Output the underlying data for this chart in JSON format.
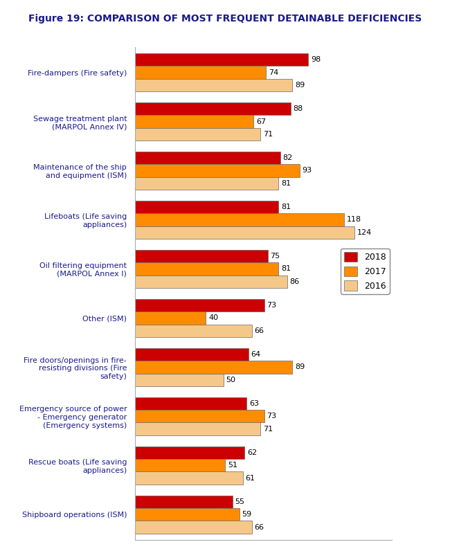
{
  "title": "Figure 19: COMPARISON OF MOST FREQUENT DETAINABLE DEFICIENCIES",
  "categories": [
    "Fire-dampers (Fire safety)",
    "Sewage treatment plant\n(MARPOL Annex IV)",
    "Maintenance of the ship\nand equipment (ISM)",
    "Lifeboats (Life saving\nappliances)",
    "Oil filtering equipment\n(MARPOL Annex I)",
    "Other (ISM)",
    "Fire doors/openings in fire-\nresisting divisions (Fire\nsafety)",
    "Emergency source of power\n- Emergency generator\n(Emergency systems)",
    "Rescue boats (Life saving\nappliances)",
    "Shipboard operations (ISM)"
  ],
  "values_2018": [
    98,
    88,
    82,
    81,
    75,
    73,
    64,
    63,
    62,
    55
  ],
  "values_2017": [
    74,
    67,
    93,
    118,
    81,
    40,
    89,
    73,
    51,
    59
  ],
  "values_2016": [
    89,
    71,
    81,
    124,
    86,
    66,
    50,
    71,
    61,
    66
  ],
  "color_2018": "#cc0000",
  "color_2017": "#ff8c00",
  "color_2016": "#f5c88a",
  "legend_labels": [
    "2018",
    "2017",
    "2016"
  ],
  "bar_height": 0.26,
  "xlim": [
    0,
    145
  ],
  "background_color": "#ffffff",
  "title_color": "#1a1a8c",
  "label_color": "#1a1a8c",
  "value_fontsize": 8,
  "label_fontsize": 8,
  "title_fontsize": 10
}
